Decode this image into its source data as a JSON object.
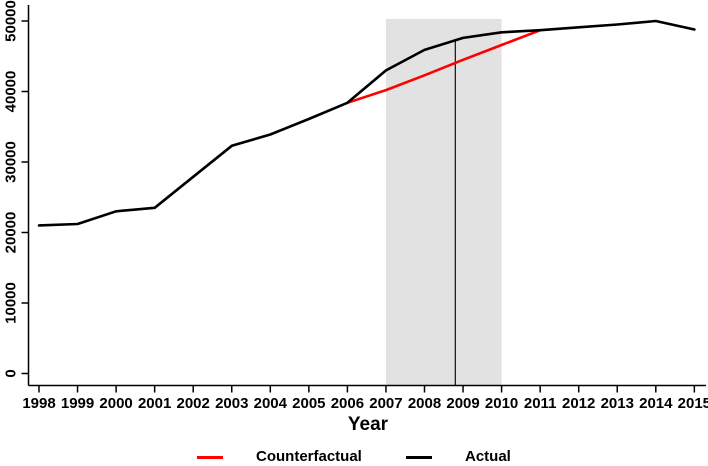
{
  "figure": {
    "xlabel": "Year",
    "legend": {
      "items": [
        {
          "label": "Counterfactual",
          "color": "#ff0000"
        },
        {
          "label": "Actual",
          "color": "#000000"
        }
      ]
    }
  },
  "chart_data": {
    "type": "line",
    "title": "",
    "xlabel": "Year",
    "ylabel": "",
    "xlim": [
      1998,
      2015
    ],
    "ylim": [
      0,
      50000
    ],
    "x_ticks": [
      1998,
      1999,
      2000,
      2001,
      2002,
      2003,
      2004,
      2005,
      2006,
      2007,
      2008,
      2009,
      2010,
      2011,
      2012,
      2013,
      2014,
      2015
    ],
    "y_ticks": [
      0,
      10000,
      20000,
      30000,
      40000,
      50000
    ],
    "grid": false,
    "legend_position": "bottom",
    "series": [
      {
        "name": "Actual",
        "color": "#000000",
        "x": [
          1998,
          1999,
          2000,
          2001,
          2002,
          2003,
          2004,
          2005,
          2006,
          2007,
          2008,
          2009,
          2010,
          2011,
          2012,
          2013,
          2014,
          2015
        ],
        "values": [
          21000,
          21200,
          23000,
          23500,
          27900,
          32300,
          33900,
          36100,
          38400,
          43000,
          45900,
          47600,
          48400,
          48700,
          49100,
          49500,
          50000,
          48800
        ]
      },
      {
        "name": "Counterfactual",
        "color": "#ff0000",
        "x": [
          2006,
          2007,
          2008,
          2009,
          2010,
          2011
        ],
        "values": [
          38400,
          40200,
          42300,
          44500,
          46600,
          48700
        ]
      }
    ],
    "annotations": {
      "shaded_region": {
        "x0": 2007,
        "x1": 2010,
        "color": "#e2e2e2"
      },
      "vline": {
        "x": 2008.8,
        "y_top_value": 47400,
        "color": "#1f1f1f"
      }
    }
  }
}
